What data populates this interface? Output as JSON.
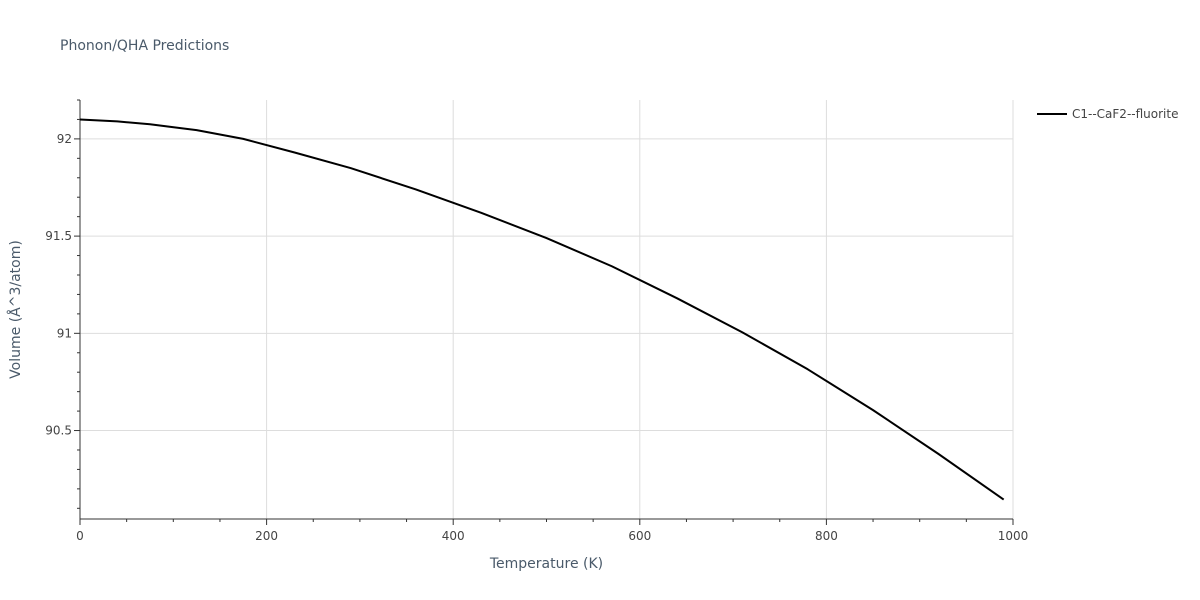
{
  "chart_data": {
    "type": "line",
    "title": "Phonon/QHA Predictions",
    "xlabel": "Temperature (K)",
    "ylabel": "Volume (Å^3/atom)",
    "xlim": [
      0,
      1000
    ],
    "ylim": [
      90.045,
      92.2
    ],
    "x_ticks": [
      0,
      200,
      400,
      600,
      800,
      1000
    ],
    "y_ticks": [
      90.5,
      91,
      91.5,
      92
    ],
    "x_tick_labels": [
      "0",
      "200",
      "400",
      "600",
      "800",
      "1000"
    ],
    "y_tick_labels": [
      "90.5",
      "91",
      "91.5",
      "92"
    ],
    "grid": true,
    "legend_position": "top-right",
    "series": [
      {
        "name": "C1--CaF2--fluorite",
        "color": "#000000",
        "x": [
          0,
          40,
          75,
          125,
          175,
          230,
          290,
          360,
          430,
          500,
          570,
          640,
          710,
          780,
          850,
          920,
          990
        ],
        "y": [
          92.1,
          92.09,
          92.075,
          92.045,
          92.0,
          91.93,
          91.85,
          91.74,
          91.62,
          91.49,
          91.345,
          91.18,
          91.005,
          90.815,
          90.605,
          90.38,
          90.145
        ]
      }
    ]
  }
}
